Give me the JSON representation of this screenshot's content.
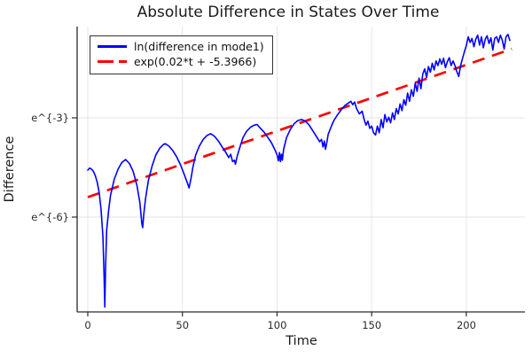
{
  "chart_data": {
    "type": "line",
    "title": "Absolute Difference in States Over Time",
    "xlabel": "Time",
    "ylabel": "Difference",
    "x_range": [
      -5.6,
      231
    ],
    "y_range_ln": [
      -8.87,
      -0.24
    ],
    "y_scale": "natural-log",
    "grid": true,
    "legend_position": "top-left",
    "xticks": [
      0,
      50,
      100,
      150,
      200
    ],
    "yticks": [
      {
        "value_ln": -3,
        "label": "e^{-3}"
      },
      {
        "value_ln": -6,
        "label": "e^{-6}"
      }
    ],
    "series": [
      {
        "name": "ln(difference in mode1)",
        "color": "#0000ff",
        "style": "solid",
        "points_t_lnvalue": [
          [
            0,
            -4.58
          ],
          [
            1,
            -4.52
          ],
          [
            2,
            -4.55
          ],
          [
            3,
            -4.62
          ],
          [
            4,
            -4.75
          ],
          [
            5,
            -4.95
          ],
          [
            6,
            -5.25
          ],
          [
            7,
            -5.75
          ],
          [
            8,
            -6.6
          ],
          [
            8.6,
            -7.8
          ],
          [
            9,
            -8.72
          ],
          [
            9.4,
            -7.5
          ],
          [
            10,
            -6.4
          ],
          [
            11,
            -5.8
          ],
          [
            12,
            -5.35
          ],
          [
            14,
            -4.85
          ],
          [
            16,
            -4.55
          ],
          [
            18,
            -4.35
          ],
          [
            20,
            -4.26
          ],
          [
            22,
            -4.38
          ],
          [
            24,
            -4.62
          ],
          [
            26,
            -5.05
          ],
          [
            27.5,
            -5.55
          ],
          [
            28.6,
            -6.2
          ],
          [
            29,
            -6.32
          ],
          [
            29.6,
            -5.9
          ],
          [
            30.5,
            -5.45
          ],
          [
            32,
            -4.9
          ],
          [
            34,
            -4.45
          ],
          [
            36,
            -4.12
          ],
          [
            38,
            -3.92
          ],
          [
            40,
            -3.8
          ],
          [
            41,
            -3.78
          ],
          [
            43,
            -3.86
          ],
          [
            45,
            -4.0
          ],
          [
            47,
            -4.18
          ],
          [
            49,
            -4.42
          ],
          [
            51,
            -4.72
          ],
          [
            52.5,
            -4.95
          ],
          [
            53.5,
            -5.12
          ],
          [
            54.5,
            -4.85
          ],
          [
            55.5,
            -4.5
          ],
          [
            57,
            -4.12
          ],
          [
            59,
            -3.85
          ],
          [
            61,
            -3.65
          ],
          [
            63,
            -3.53
          ],
          [
            65,
            -3.48
          ],
          [
            67,
            -3.56
          ],
          [
            69,
            -3.7
          ],
          [
            71,
            -3.88
          ],
          [
            73,
            -4.05
          ],
          [
            74.5,
            -4.2
          ],
          [
            75.5,
            -4.1
          ],
          [
            76.5,
            -4.32
          ],
          [
            77.5,
            -4.28
          ],
          [
            78,
            -4.4
          ],
          [
            79,
            -4.15
          ],
          [
            80,
            -3.95
          ],
          [
            82,
            -3.6
          ],
          [
            84,
            -3.4
          ],
          [
            86,
            -3.28
          ],
          [
            88,
            -3.22
          ],
          [
            89.5,
            -3.2
          ],
          [
            91,
            -3.3
          ],
          [
            93,
            -3.42
          ],
          [
            95,
            -3.58
          ],
          [
            97,
            -3.75
          ],
          [
            99,
            -3.98
          ],
          [
            100,
            -4.12
          ],
          [
            100.7,
            -4.3
          ],
          [
            101.3,
            -4.05
          ],
          [
            101.8,
            -4.32
          ],
          [
            102.3,
            -4.1
          ],
          [
            102.8,
            -4.28
          ],
          [
            103.5,
            -3.95
          ],
          [
            105,
            -3.6
          ],
          [
            107,
            -3.35
          ],
          [
            109,
            -3.18
          ],
          [
            111,
            -3.08
          ],
          [
            113,
            -3.05
          ],
          [
            115,
            -3.1
          ],
          [
            117,
            -3.22
          ],
          [
            119,
            -3.4
          ],
          [
            121,
            -3.58
          ],
          [
            122.5,
            -3.72
          ],
          [
            123.5,
            -3.65
          ],
          [
            124.3,
            -3.88
          ],
          [
            125,
            -3.7
          ],
          [
            125.6,
            -3.95
          ],
          [
            126.3,
            -3.75
          ],
          [
            127,
            -3.5
          ],
          [
            128.5,
            -3.28
          ],
          [
            130,
            -3.08
          ],
          [
            132,
            -2.9
          ],
          [
            134,
            -2.75
          ],
          [
            136,
            -2.62
          ],
          [
            138,
            -2.54
          ],
          [
            139,
            -2.5
          ],
          [
            140,
            -2.6
          ],
          [
            141,
            -2.52
          ],
          [
            142,
            -2.72
          ],
          [
            143.5,
            -2.88
          ],
          [
            145,
            -2.8
          ],
          [
            146,
            -3.05
          ],
          [
            147,
            -3.22
          ],
          [
            148,
            -3.1
          ],
          [
            149,
            -3.32
          ],
          [
            150,
            -3.25
          ],
          [
            151,
            -3.45
          ],
          [
            152,
            -3.52
          ],
          [
            153,
            -3.25
          ],
          [
            154,
            -3.45
          ],
          [
            155,
            -3.05
          ],
          [
            156,
            -3.3
          ],
          [
            157,
            -2.9
          ],
          [
            158,
            -3.12
          ],
          [
            159,
            -2.98
          ],
          [
            160,
            -3.15
          ],
          [
            161,
            -2.85
          ],
          [
            162,
            -3.05
          ],
          [
            163,
            -2.72
          ],
          [
            164,
            -2.88
          ],
          [
            165,
            -2.58
          ],
          [
            166,
            -2.78
          ],
          [
            167,
            -2.45
          ],
          [
            168,
            -2.62
          ],
          [
            169,
            -2.25
          ],
          [
            170,
            -2.5
          ],
          [
            171,
            -2.15
          ],
          [
            172,
            -2.35
          ],
          [
            173,
            -1.95
          ],
          [
            174,
            -2.2
          ],
          [
            175,
            -1.8
          ],
          [
            176,
            -2.12
          ],
          [
            177,
            -1.68
          ],
          [
            178,
            -1.52
          ],
          [
            179,
            -1.78
          ],
          [
            180,
            -1.45
          ],
          [
            181,
            -1.62
          ],
          [
            182,
            -1.35
          ],
          [
            183,
            -1.55
          ],
          [
            184,
            -1.28
          ],
          [
            185,
            -1.42
          ],
          [
            186,
            -1.22
          ],
          [
            187,
            -1.38
          ],
          [
            188,
            -1.2
          ],
          [
            189,
            -1.48
          ],
          [
            190,
            -1.3
          ],
          [
            191,
            -1.18
          ],
          [
            192,
            -1.42
          ],
          [
            193,
            -1.28
          ],
          [
            194,
            -1.42
          ],
          [
            195,
            -1.6
          ],
          [
            196,
            -1.75
          ],
          [
            197,
            -1.42
          ],
          [
            198,
            -1.2
          ],
          [
            199,
            -1.0
          ],
          [
            200,
            -0.82
          ],
          [
            201,
            -0.55
          ],
          [
            202,
            -0.72
          ],
          [
            203,
            -0.6
          ],
          [
            204,
            -0.85
          ],
          [
            205,
            -0.62
          ],
          [
            206,
            -0.5
          ],
          [
            207,
            -0.8
          ],
          [
            208,
            -0.55
          ],
          [
            209,
            -0.88
          ],
          [
            210,
            -0.62
          ],
          [
            211,
            -0.52
          ],
          [
            212,
            -0.75
          ],
          [
            213,
            -0.58
          ],
          [
            214,
            -0.95
          ],
          [
            215,
            -0.6
          ],
          [
            216,
            -0.55
          ],
          [
            217,
            -0.72
          ],
          [
            218,
            -0.5
          ],
          [
            219,
            -0.65
          ],
          [
            220,
            -0.92
          ],
          [
            221,
            -0.55
          ],
          [
            222,
            -0.48
          ],
          [
            223,
            -0.66
          ]
        ]
      },
      {
        "name": "exp(0.02*t + -5.3966)",
        "color": "#ff0000",
        "style": "dashed",
        "fit": {
          "slope": 0.02,
          "intercept_ln": -5.3966,
          "t_range": [
            0,
            224
          ]
        }
      }
    ],
    "colors": {
      "grid": "#e3e3e3",
      "axis": "#2a2a2a",
      "background": "#ffffff"
    }
  }
}
